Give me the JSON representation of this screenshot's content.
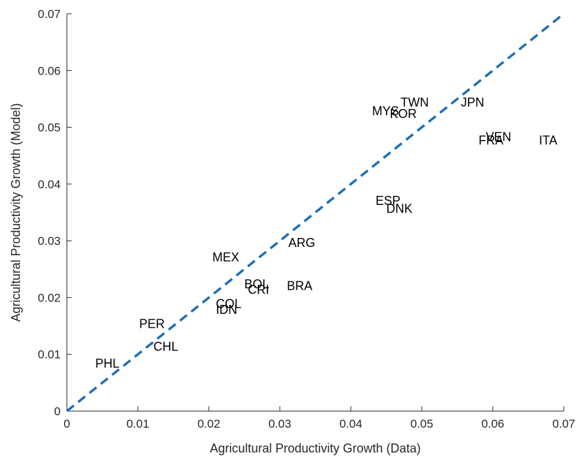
{
  "chart_data": {
    "type": "scatter",
    "xlabel": "Agricultural Productivity Growth (Data)",
    "ylabel": "Agricultural Productivity Growth (Model)",
    "xlim": [
      0,
      0.07
    ],
    "ylim": [
      0,
      0.07
    ],
    "x_ticks": [
      "0",
      "0.01",
      "0.02",
      "0.03",
      "0.04",
      "0.05",
      "0.06",
      "0.07"
    ],
    "y_ticks": [
      "0",
      "0.01",
      "0.02",
      "0.03",
      "0.04",
      "0.05",
      "0.06",
      "0.07"
    ],
    "grid": false,
    "reference_line": {
      "style": "dashed",
      "color": "#1f6fb4",
      "from": [
        0,
        0
      ],
      "to": [
        0.07,
        0.07
      ]
    },
    "points": [
      {
        "label": "PHL",
        "x": 0.004,
        "y": 0.0085
      },
      {
        "label": "CHL",
        "x": 0.0122,
        "y": 0.0115
      },
      {
        "label": "PER",
        "x": 0.0102,
        "y": 0.0155
      },
      {
        "label": "COL",
        "x": 0.021,
        "y": 0.019
      },
      {
        "label": "IDN",
        "x": 0.021,
        "y": 0.018
      },
      {
        "label": "BOL",
        "x": 0.025,
        "y": 0.0225
      },
      {
        "label": "CRI",
        "x": 0.0255,
        "y": 0.0215
      },
      {
        "label": "BRA",
        "x": 0.031,
        "y": 0.0222
      },
      {
        "label": "MEX",
        "x": 0.0205,
        "y": 0.0272
      },
      {
        "label": "ARG",
        "x": 0.0312,
        "y": 0.0298
      },
      {
        "label": "ESP",
        "x": 0.0435,
        "y": 0.0372
      },
      {
        "label": "DNK",
        "x": 0.045,
        "y": 0.0358
      },
      {
        "label": "MYS",
        "x": 0.043,
        "y": 0.053
      },
      {
        "label": "KOR",
        "x": 0.0455,
        "y": 0.0525
      },
      {
        "label": "TWN",
        "x": 0.047,
        "y": 0.0545
      },
      {
        "label": "JPN",
        "x": 0.0555,
        "y": 0.0545
      },
      {
        "label": "FRA",
        "x": 0.058,
        "y": 0.0478
      },
      {
        "label": "VEN",
        "x": 0.059,
        "y": 0.0484
      },
      {
        "label": "ITA",
        "x": 0.0665,
        "y": 0.0478
      }
    ]
  }
}
